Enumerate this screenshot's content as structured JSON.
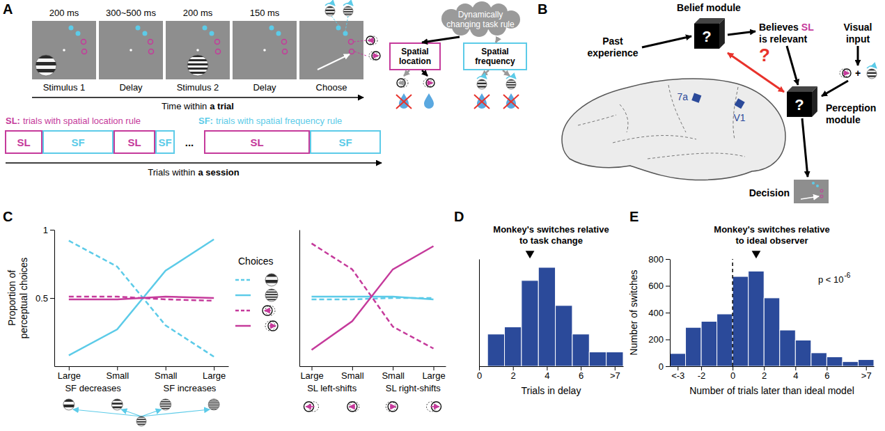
{
  "panel_letters": [
    "A",
    "B",
    "C",
    "D",
    "E"
  ],
  "panel_a": {
    "durations": [
      "200 ms",
      "300~500 ms",
      "200 ms",
      "150 ms"
    ],
    "screens": [
      "Stimulus 1",
      "Delay",
      "Stimulus 2",
      "Delay",
      "Choose"
    ],
    "trial_axis": [
      "Time within",
      "a trial"
    ],
    "rule_cloud": "Dynamically changing task rule",
    "rules": [
      {
        "name": "Spatial location",
        "abbr": "SL",
        "color": "#c53a9b"
      },
      {
        "name": "Spatial frequency",
        "abbr": "SF",
        "color": "#5ccbe8"
      }
    ],
    "rule_legend": [
      {
        "abbr": "SL:",
        "text": "trials with spatial location rule"
      },
      {
        "abbr": "SF:",
        "text": "trials with spatial frequency rule"
      }
    ],
    "session_blocks": [
      0,
      1,
      0,
      1,
      null,
      0,
      1
    ],
    "ellipsis": "...",
    "session_axis": [
      "Trials within",
      "a session"
    ]
  },
  "panel_b": {
    "belief": "Belief module",
    "past": "Past experience",
    "believes": [
      "Believes",
      "SL",
      "is relevant"
    ],
    "visual": "Visual input",
    "icon_plus": "+",
    "perception": "Perception module",
    "decision": "Decision",
    "areas": [
      "7a",
      "V1"
    ],
    "question": "?"
  },
  "chart_data": [
    {
      "type": "line",
      "ylabel": "Proportion of perceptual choices",
      "categories": [
        "Large",
        "Small",
        "Small",
        "Large"
      ],
      "ylim": [
        0,
        1
      ],
      "yticks": [
        0.5,
        1
      ],
      "legend": "right",
      "legend_title": "Choices",
      "group_labels": [
        "SF decreases",
        "SF increases"
      ],
      "series": [
        {
          "color": "#5ccbe8",
          "line_style": "dashed",
          "values": [
            0.92,
            0.73,
            0.3,
            0.07
          ]
        },
        {
          "color": "#5ccbe8",
          "line_style": "solid",
          "values": [
            0.08,
            0.27,
            0.7,
            0.93
          ]
        },
        {
          "color": "#c53a9b",
          "line_style": "dashed",
          "values": [
            0.51,
            0.51,
            0.49,
            0.48
          ]
        },
        {
          "color": "#c53a9b",
          "line_style": "solid",
          "values": [
            0.49,
            0.49,
            0.51,
            0.5
          ]
        }
      ]
    },
    {
      "type": "line",
      "categories": [
        "Large",
        "Small",
        "Small",
        "Large"
      ],
      "ylim": [
        0,
        1
      ],
      "tick_labels": "x",
      "group_labels": [
        "SL left-shifts",
        "SL right-shifts"
      ],
      "series": [
        {
          "color": "#5ccbe8",
          "line_style": "dashed",
          "values": [
            0.49,
            0.49,
            0.5,
            0.5
          ]
        },
        {
          "color": "#5ccbe8",
          "line_style": "solid",
          "values": [
            0.51,
            0.51,
            0.51,
            0.49
          ]
        },
        {
          "color": "#c53a9b",
          "line_style": "dashed",
          "values": [
            0.9,
            0.71,
            0.29,
            0.13
          ]
        },
        {
          "color": "#c53a9b",
          "line_style": "solid",
          "values": [
            0.12,
            0.33,
            0.71,
            0.88
          ]
        }
      ]
    },
    {
      "type": "histogram",
      "title": "Monkey's switches relative to task change",
      "xlabel": "Trials in delay",
      "bins": [
        0.5,
        1.5,
        2.5,
        3.5,
        4.5,
        5.5,
        6.5,
        7.5,
        8.5
      ],
      "values": [
        270,
        330,
        720,
        830,
        510,
        270,
        120,
        120
      ],
      "color": "#2b4a9a",
      "xlim": [
        0,
        8.5
      ],
      "xticks": [
        0,
        2,
        4,
        6,
        {
          "value": 8,
          "label": ">7"
        }
      ],
      "ylim": [
        0,
        900
      ],
      "tick_labels": "x",
      "median": 3
    },
    {
      "type": "histogram",
      "title": "Monkey's switches relative to ideal observer",
      "xlabel": "Number of trials later than ideal model",
      "ylabel": "Number of switches",
      "bins": [
        -4,
        -3,
        -2,
        -1,
        0,
        1,
        2,
        3,
        4,
        5,
        6,
        7,
        8,
        9
      ],
      "values": [
        95,
        290,
        335,
        390,
        670,
        710,
        510,
        270,
        195,
        100,
        70,
        35,
        50
      ],
      "color": "#2b4a9a",
      "xlim": [
        -4,
        9
      ],
      "xticks": [
        {
          "value": -3.5,
          "label": "<-3"
        },
        -2,
        0,
        2,
        4,
        6,
        {
          "value": 8.5,
          "label": ">7"
        }
      ],
      "ylim": [
        0,
        800
      ],
      "yticks": [
        0,
        200,
        400,
        600,
        800
      ],
      "median": 1.5,
      "reference_line": 0,
      "annotation": "p < 10",
      "annotation_exponent": "-6"
    }
  ]
}
